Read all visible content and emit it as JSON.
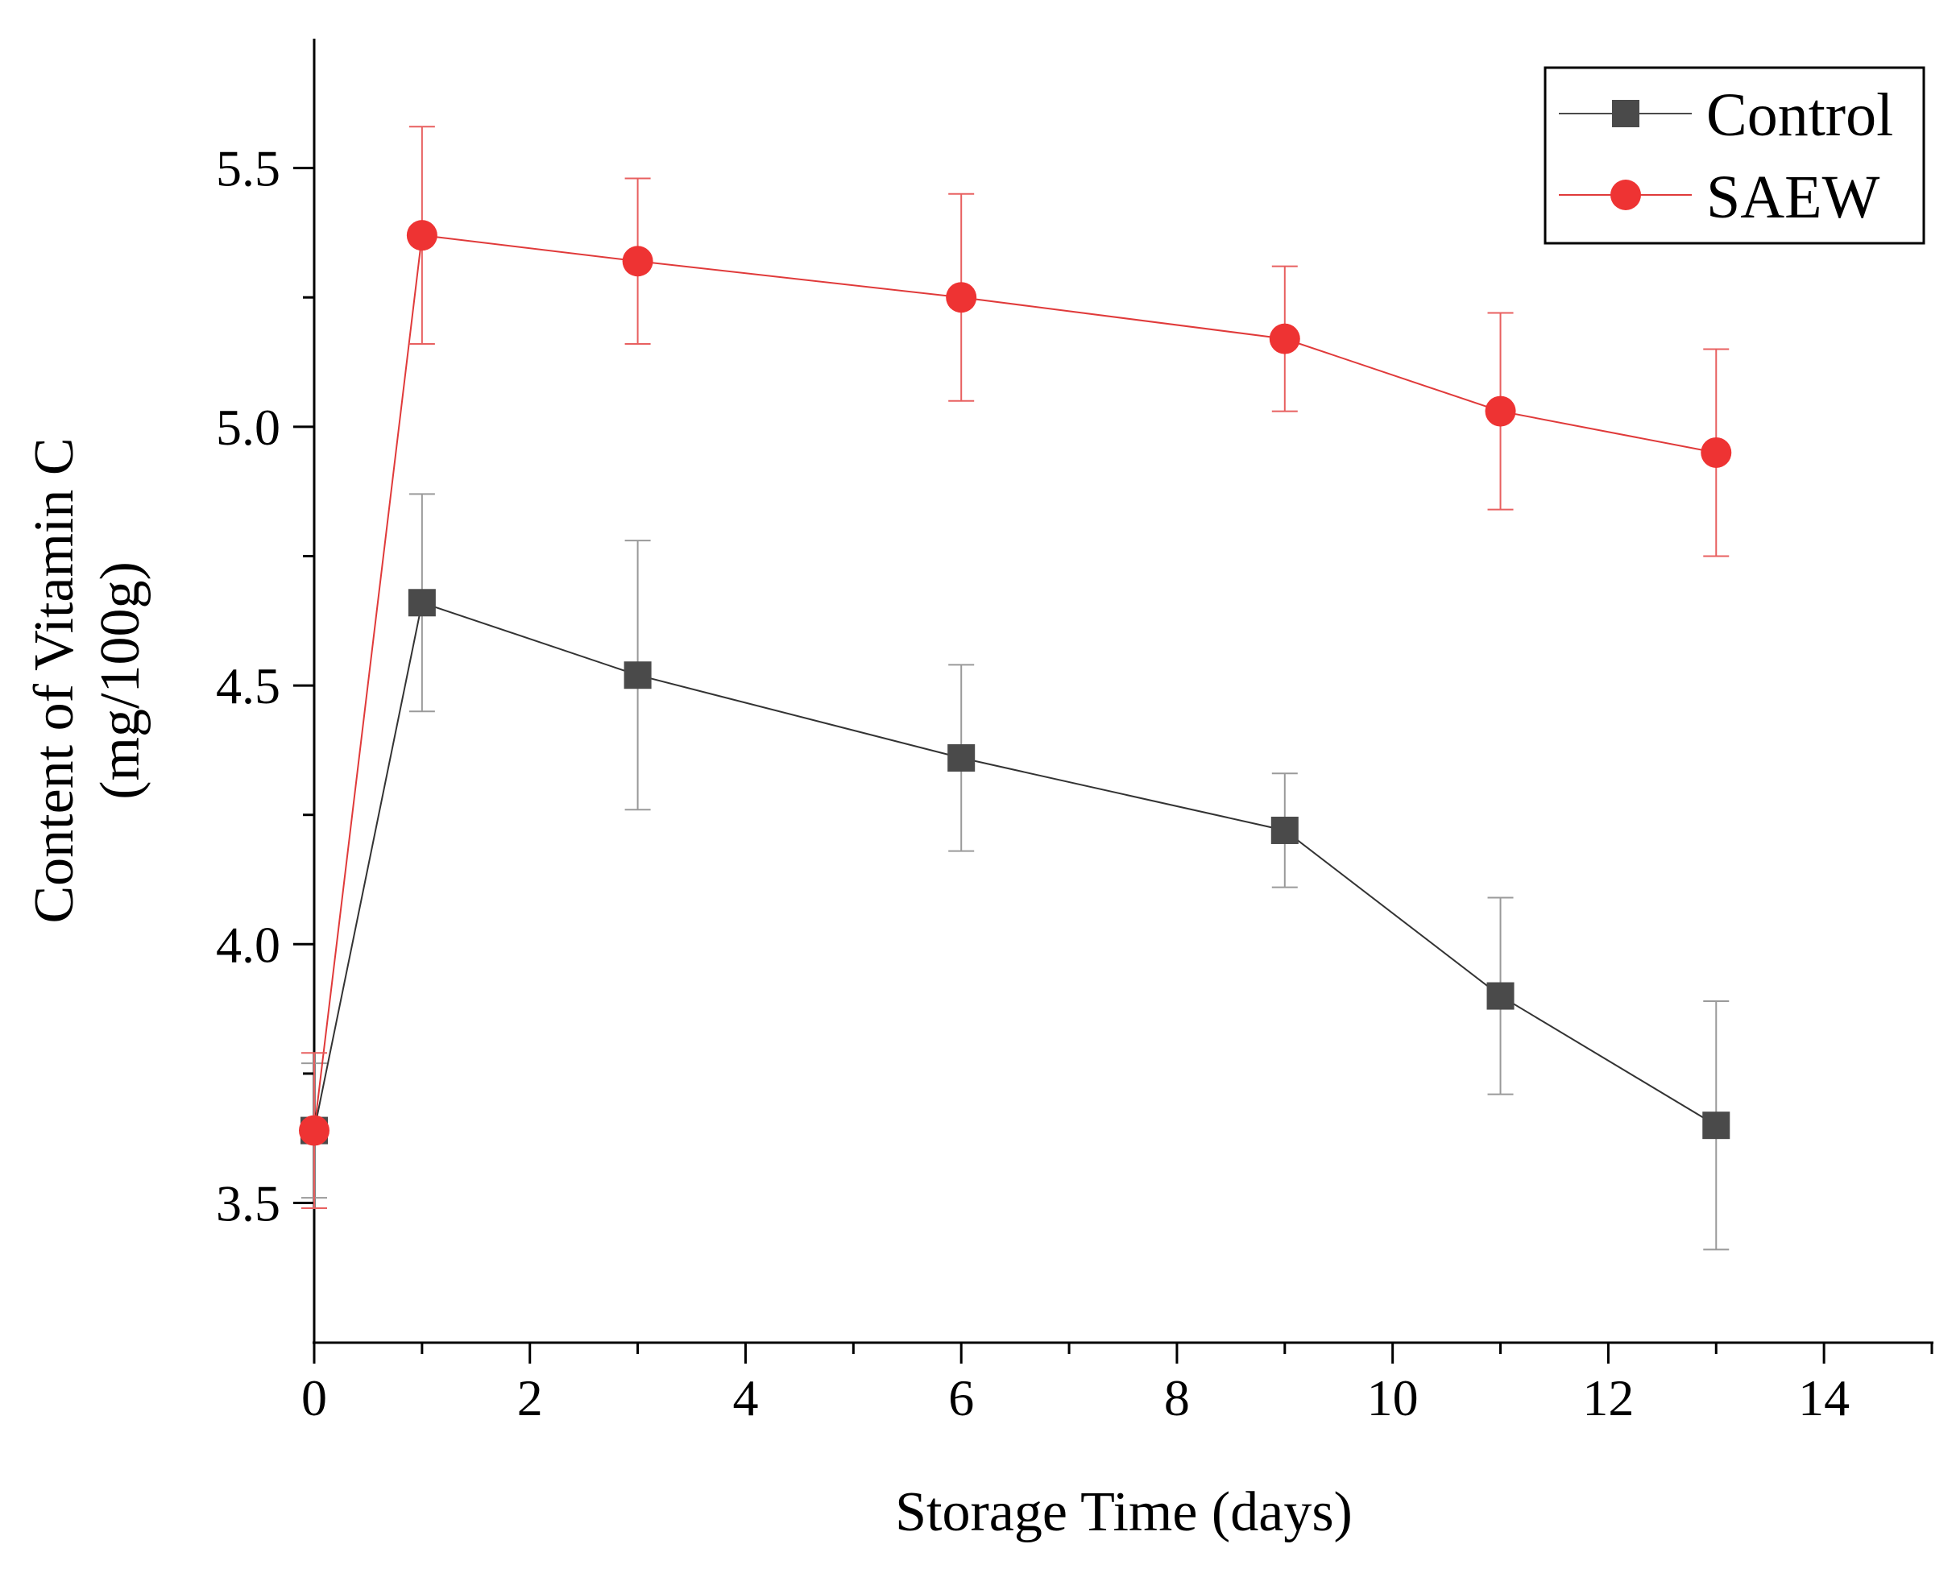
{
  "chart_data": {
    "type": "line",
    "title": "",
    "xlabel": "Storage Time (days)",
    "ylabel_lines": [
      "Content of Vitamin C",
      "(mg/100g)"
    ],
    "xlim": [
      0,
      15
    ],
    "ylim": [
      3.23,
      5.75
    ],
    "xticks": [
      0,
      2,
      4,
      6,
      8,
      10,
      12,
      14
    ],
    "xtick_labels": [
      "0",
      "2",
      "4",
      "6",
      "8",
      "10",
      "12",
      "14"
    ],
    "xminor": [
      1,
      3,
      5,
      7,
      9,
      11,
      13,
      15
    ],
    "yticks": [
      3.5,
      4.0,
      4.5,
      5.0,
      5.5
    ],
    "ytick_labels": [
      "3.5",
      "4.0",
      "4.5",
      "5.0",
      "5.5"
    ],
    "yminor": [
      3.75,
      4.25,
      4.75,
      5.25
    ],
    "grid": false,
    "legend_position": "top-right",
    "x": [
      0,
      1,
      3,
      6,
      9,
      11,
      13
    ],
    "series": [
      {
        "name": "Control",
        "marker": "square",
        "color": "#4a4a4a",
        "line_color": "#333333",
        "error_color": "#9a9a9a",
        "values": [
          3.64,
          4.66,
          4.52,
          4.36,
          4.22,
          3.9,
          3.65
        ],
        "errors": [
          0.13,
          0.21,
          0.26,
          0.18,
          0.11,
          0.19,
          0.24
        ]
      },
      {
        "name": "SAEW",
        "marker": "circle",
        "color": "#ee3333",
        "line_color": "#e03a3a",
        "error_color": "#e86060",
        "values": [
          3.64,
          5.37,
          5.32,
          5.25,
          5.17,
          5.03,
          4.95
        ],
        "errors": [
          0.15,
          0.21,
          0.16,
          0.2,
          0.14,
          0.19,
          0.2
        ]
      }
    ]
  }
}
